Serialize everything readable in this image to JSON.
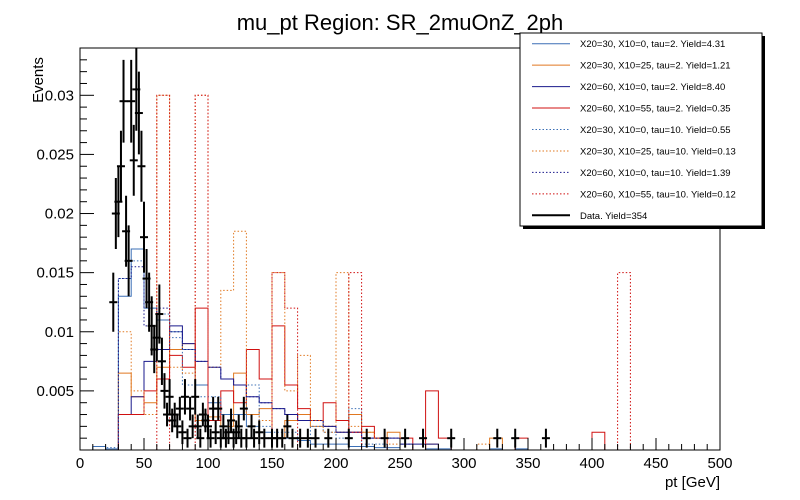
{
  "chart_data": {
    "type": "histogram",
    "title": "mu_pt Region: SR_2muOnZ_2ph",
    "xlabel": "pt [GeV]",
    "ylabel": "Events",
    "xlim": [
      0,
      500
    ],
    "ylim": [
      0,
      0.034
    ],
    "x_ticks": [
      0,
      50,
      100,
      150,
      200,
      250,
      300,
      350,
      400,
      450,
      500
    ],
    "y_ticks": [
      0.005,
      0.01,
      0.015,
      0.02,
      0.025,
      0.03
    ],
    "x_tick_labels": [
      "0",
      "50",
      "100",
      "150",
      "200",
      "250",
      "300",
      "350",
      "400",
      "450",
      "500"
    ],
    "y_tick_labels": [
      "0.005",
      "0.01",
      "0.015",
      "0.02",
      "0.025",
      "0.03"
    ],
    "grid": false,
    "legend_position": "top-right",
    "bin_width": 10,
    "series": [
      {
        "name": "X20=30, X10=0, tau=2. Yield=4.31",
        "color": "#3b6fb6",
        "style": "solid",
        "bins": [
          [
            10,
            0.0003
          ],
          [
            20,
            0.0001
          ],
          [
            30,
            0.013
          ],
          [
            40,
            0.017
          ],
          [
            50,
            0.012
          ],
          [
            60,
            0.011
          ],
          [
            70,
            0.01
          ],
          [
            80,
            0.0085
          ],
          [
            90,
            0.0055
          ],
          [
            100,
            0.004
          ],
          [
            110,
            0.003
          ],
          [
            120,
            0.003
          ],
          [
            130,
            0.002
          ],
          [
            140,
            0.0015
          ],
          [
            150,
            0.001
          ],
          [
            160,
            0.001
          ],
          [
            170,
            0.0008
          ],
          [
            180,
            0.0005
          ],
          [
            190,
            0.0005
          ],
          [
            200,
            0.0005
          ],
          [
            210,
            0.0003
          ],
          [
            220,
            0.0003
          ],
          [
            230,
            0.0002
          ],
          [
            240,
            0.0002
          ],
          [
            270,
            0.0001
          ],
          [
            280,
            0.0001
          ],
          [
            320,
            0.0001
          ],
          [
            340,
            0.0001
          ]
        ]
      },
      {
        "name": "X20=30, X10=25, tau=2. Yield=1.21",
        "color": "#e07820",
        "style": "solid",
        "bins": [
          [
            30,
            0.0065
          ],
          [
            40,
            0.0045
          ],
          [
            50,
            0.004
          ],
          [
            60,
            0.007
          ],
          [
            70,
            0.0085
          ],
          [
            80,
            0.009
          ],
          [
            90,
            0.0025
          ],
          [
            100,
            0.0028
          ],
          [
            110,
            0.002
          ],
          [
            120,
            0.0065
          ],
          [
            130,
            0.003
          ],
          [
            140,
            0.0035
          ],
          [
            150,
            0.001
          ],
          [
            160,
            0.0025
          ],
          [
            170,
            0.003
          ],
          [
            180,
            0.002
          ],
          [
            190,
            0.002
          ],
          [
            200,
            0.0015
          ],
          [
            210,
            0.003
          ],
          [
            220,
            0.0015
          ],
          [
            230,
            0.001
          ],
          [
            240,
            0.0015
          ],
          [
            270,
            0.0005
          ],
          [
            320,
            0.001
          ]
        ]
      },
      {
        "name": "X20=60, X10=0, tau=2. Yield=8.40",
        "color": "#1a1a8c",
        "style": "solid",
        "bins": [
          [
            30,
            0.003
          ],
          [
            40,
            0.0045
          ],
          [
            50,
            0.0075
          ],
          [
            60,
            0.0085
          ],
          [
            70,
            0.0105
          ],
          [
            80,
            0.009
          ],
          [
            90,
            0.0075
          ],
          [
            100,
            0.007
          ],
          [
            110,
            0.006
          ],
          [
            120,
            0.0055
          ],
          [
            130,
            0.0045
          ],
          [
            140,
            0.004
          ],
          [
            150,
            0.0035
          ],
          [
            160,
            0.003
          ],
          [
            170,
            0.0025
          ],
          [
            180,
            0.0025
          ],
          [
            190,
            0.002
          ],
          [
            200,
            0.0015
          ],
          [
            210,
            0.0015
          ],
          [
            220,
            0.001
          ],
          [
            230,
            0.001
          ],
          [
            240,
            0.001
          ],
          [
            250,
            0.0005
          ],
          [
            260,
            0.0005
          ],
          [
            270,
            0.0005
          ]
        ]
      },
      {
        "name": "X20=60, X10=55, tau=2. Yield=0.35",
        "color": "#d01010",
        "style": "solid",
        "bins": [
          [
            30,
            0.003
          ],
          [
            40,
            0.003
          ],
          [
            50,
            0.005
          ],
          [
            60,
            0.006
          ],
          [
            70,
            0.008
          ],
          [
            80,
            0.007
          ],
          [
            90,
            0.012
          ],
          [
            100,
            0.0025
          ],
          [
            110,
            0.005
          ],
          [
            120,
            0.004
          ],
          [
            130,
            0.0085
          ],
          [
            140,
            0.006
          ],
          [
            150,
            0.0105
          ],
          [
            160,
            0.0055
          ],
          [
            170,
            0.0035
          ],
          [
            180,
            0.0025
          ],
          [
            190,
            0.004
          ],
          [
            200,
            0.0025
          ],
          [
            210,
            0.0015
          ],
          [
            220,
            0.002
          ],
          [
            230,
            0.001
          ],
          [
            250,
            0.001
          ],
          [
            270,
            0.005
          ],
          [
            280,
            0.001
          ],
          [
            340,
            0.001
          ],
          [
            400,
            0.0015
          ]
        ]
      },
      {
        "name": "X20=30, X10=0, tau=10. Yield=0.55",
        "color": "#3b6fb6",
        "style": "dotted",
        "bins": [
          [
            20,
            0.0002
          ],
          [
            30,
            0.0145
          ],
          [
            40,
            0.016
          ],
          [
            50,
            0.012
          ],
          [
            60,
            0.0115
          ],
          [
            70,
            0.0095
          ],
          [
            80,
            0.0055
          ],
          [
            90,
            0.0045
          ],
          [
            100,
            0.0045
          ],
          [
            110,
            0.003
          ],
          [
            120,
            0.003
          ],
          [
            130,
            0.0055
          ],
          [
            140,
            0.002
          ],
          [
            150,
            0.0015
          ],
          [
            160,
            0.0015
          ],
          [
            170,
            0.001
          ],
          [
            180,
            0.002
          ],
          [
            190,
            0.0015
          ],
          [
            200,
            0.001
          ],
          [
            210,
            0.0035
          ],
          [
            220,
            0.0005
          ],
          [
            230,
            0.0005
          ],
          [
            250,
            0.0005
          ]
        ]
      },
      {
        "name": "X20=30, X10=25, tau=10. Yield=0.13",
        "color": "#e07820",
        "style": "dotted",
        "bins": [
          [
            30,
            0.01
          ],
          [
            40,
            0.005
          ],
          [
            50,
            0.003
          ],
          [
            60,
            0.03
          ],
          [
            70,
            0.007
          ],
          [
            80,
            0.0065
          ],
          [
            90,
            0.03
          ],
          [
            100,
            0.007
          ],
          [
            110,
            0.0135
          ],
          [
            120,
            0.0185
          ],
          [
            130,
            0.003
          ],
          [
            140,
            0.0025
          ],
          [
            150,
            0.015
          ],
          [
            160,
            0.005
          ],
          [
            170,
            0.008
          ],
          [
            180,
            0.0025
          ],
          [
            190,
            0.0015
          ],
          [
            200,
            0.015
          ],
          [
            210,
            0.002
          ],
          [
            220,
            0.0015
          ],
          [
            230,
            0.001
          ],
          [
            240,
            0.0005
          ],
          [
            310,
            0.0005
          ]
        ]
      },
      {
        "name": "X20=60, X10=0, tau=10. Yield=1.39",
        "color": "#1a1a8c",
        "style": "dotted",
        "bins": [
          [
            30,
            0.0145
          ],
          [
            40,
            0.0155
          ],
          [
            50,
            0.0105
          ],
          [
            60,
            0.012
          ],
          [
            70,
            0.01
          ],
          [
            80,
            0.0085
          ],
          [
            90,
            0.0075
          ],
          [
            100,
            0.007
          ],
          [
            110,
            0.006
          ],
          [
            120,
            0.0055
          ],
          [
            130,
            0.0045
          ],
          [
            140,
            0.004
          ],
          [
            150,
            0.0035
          ],
          [
            160,
            0.003
          ],
          [
            170,
            0.0025
          ],
          [
            180,
            0.0025
          ],
          [
            190,
            0.002
          ],
          [
            200,
            0.0015
          ],
          [
            210,
            0.0015
          ],
          [
            220,
            0.001
          ],
          [
            230,
            0.001
          ],
          [
            240,
            0.001
          ],
          [
            250,
            0.0005
          ]
        ]
      },
      {
        "name": "X20=60, X10=55, tau=10. Yield=0.12",
        "color": "#d01010",
        "style": "dotted",
        "bins": [
          [
            60,
            0.03
          ],
          [
            90,
            0.03
          ],
          [
            150,
            0.015
          ],
          [
            160,
            0.012
          ],
          [
            210,
            0.015
          ],
          [
            420,
            0.015
          ]
        ]
      }
    ],
    "data": {
      "name": "Data. Yield=354",
      "color": "#000000",
      "points": [
        [
          26,
          0.0125,
          0.0025
        ],
        [
          28,
          0.02,
          0.003
        ],
        [
          30,
          0.021,
          0.003
        ],
        [
          32,
          0.024,
          0.003
        ],
        [
          34,
          0.0295,
          0.0035
        ],
        [
          36,
          0.0185,
          0.003
        ],
        [
          38,
          0.016,
          0.003
        ],
        [
          40,
          0.0295,
          0.0035
        ],
        [
          42,
          0.0245,
          0.003
        ],
        [
          44,
          0.0305,
          0.0035
        ],
        [
          46,
          0.0285,
          0.0035
        ],
        [
          48,
          0.024,
          0.003
        ],
        [
          50,
          0.018,
          0.003
        ],
        [
          52,
          0.0145,
          0.0025
        ],
        [
          54,
          0.0125,
          0.0025
        ],
        [
          56,
          0.0105,
          0.0025
        ],
        [
          58,
          0.0085,
          0.002
        ],
        [
          60,
          0.0095,
          0.002
        ],
        [
          62,
          0.0115,
          0.0025
        ],
        [
          64,
          0.0075,
          0.002
        ],
        [
          66,
          0.005,
          0.0015
        ],
        [
          68,
          0.003,
          0.001
        ],
        [
          70,
          0.0045,
          0.0015
        ],
        [
          72,
          0.0025,
          0.001
        ],
        [
          74,
          0.003,
          0.001
        ],
        [
          76,
          0.002,
          0.001
        ],
        [
          78,
          0.0035,
          0.001
        ],
        [
          80,
          0.0015,
          0.001
        ],
        [
          82,
          0.0045,
          0.0015
        ],
        [
          84,
          0.001,
          0.0008
        ],
        [
          86,
          0.0035,
          0.001
        ],
        [
          88,
          0.002,
          0.001
        ],
        [
          90,
          0.0045,
          0.0015
        ],
        [
          92,
          0.002,
          0.001
        ],
        [
          94,
          0.001,
          0.0008
        ],
        [
          96,
          0.003,
          0.001
        ],
        [
          98,
          0.0025,
          0.001
        ],
        [
          100,
          0.002,
          0.001
        ],
        [
          102,
          0.001,
          0.0008
        ],
        [
          104,
          0.0035,
          0.001
        ],
        [
          106,
          0.0015,
          0.001
        ],
        [
          108,
          0.0035,
          0.001
        ],
        [
          110,
          0.001,
          0.0008
        ],
        [
          112,
          0.002,
          0.001
        ],
        [
          114,
          0.001,
          0.0008
        ],
        [
          116,
          0.0015,
          0.001
        ],
        [
          118,
          0.0025,
          0.001
        ],
        [
          120,
          0.001,
          0.0008
        ],
        [
          122,
          0.0015,
          0.001
        ],
        [
          124,
          0.002,
          0.001
        ],
        [
          126,
          0.001,
          0.0008
        ],
        [
          128,
          0.0035,
          0.001
        ],
        [
          130,
          0.001,
          0.0008
        ],
        [
          134,
          0.002,
          0.001
        ],
        [
          136,
          0.001,
          0.0008
        ],
        [
          140,
          0.0015,
          0.001
        ],
        [
          144,
          0.001,
          0.0008
        ],
        [
          150,
          0.001,
          0.0008
        ],
        [
          154,
          0.001,
          0.0008
        ],
        [
          158,
          0.001,
          0.0008
        ],
        [
          162,
          0.002,
          0.001
        ],
        [
          166,
          0.001,
          0.0008
        ],
        [
          172,
          0.001,
          0.0008
        ],
        [
          178,
          0.001,
          0.0008
        ],
        [
          184,
          0.001,
          0.0008
        ],
        [
          194,
          0.001,
          0.0008
        ],
        [
          210,
          0.001,
          0.0008
        ],
        [
          224,
          0.001,
          0.0008
        ],
        [
          238,
          0.001,
          0.0008
        ],
        [
          254,
          0.001,
          0.0008
        ],
        [
          268,
          0.001,
          0.0008
        ],
        [
          290,
          0.001,
          0.0008
        ],
        [
          326,
          0.001,
          0.0008
        ],
        [
          340,
          0.001,
          0.0008
        ],
        [
          364,
          0.001,
          0.0008
        ]
      ]
    }
  }
}
